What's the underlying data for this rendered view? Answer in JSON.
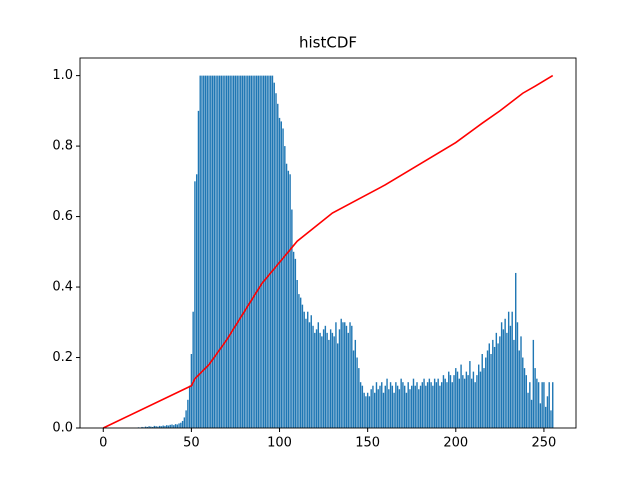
{
  "chart_data": [
    {
      "type": "bar",
      "title": "histCDF",
      "color": "#1f77b4",
      "xlim": [
        -13.2,
        268.2
      ],
      "ylim": [
        0,
        1.05
      ],
      "xticks": [
        0,
        50,
        100,
        150,
        200,
        250
      ],
      "yticks": [
        {
          "value": 0,
          "label": "0.0"
        },
        0.2,
        0.4,
        0.6,
        0.8,
        {
          "value": 1,
          "label": "1.0"
        }
      ],
      "x": [
        0,
        1,
        2,
        3,
        4,
        5,
        6,
        7,
        8,
        9,
        10,
        11,
        12,
        13,
        14,
        15,
        16,
        17,
        18,
        19,
        20,
        21,
        22,
        23,
        24,
        25,
        26,
        27,
        28,
        29,
        30,
        31,
        32,
        33,
        34,
        35,
        36,
        37,
        38,
        39,
        40,
        41,
        42,
        43,
        44,
        45,
        46,
        47,
        48,
        49,
        50,
        51,
        52,
        53,
        54,
        55,
        56,
        57,
        58,
        59,
        60,
        61,
        62,
        63,
        64,
        65,
        66,
        67,
        68,
        69,
        70,
        71,
        72,
        73,
        74,
        75,
        76,
        77,
        78,
        79,
        80,
        81,
        82,
        83,
        84,
        85,
        86,
        87,
        88,
        89,
        90,
        91,
        92,
        93,
        94,
        95,
        96,
        97,
        98,
        99,
        100,
        101,
        102,
        103,
        104,
        105,
        106,
        107,
        108,
        109,
        110,
        111,
        112,
        113,
        114,
        115,
        116,
        117,
        118,
        119,
        120,
        121,
        122,
        123,
        124,
        125,
        126,
        127,
        128,
        129,
        130,
        131,
        132,
        133,
        134,
        135,
        136,
        137,
        138,
        139,
        140,
        141,
        142,
        143,
        144,
        145,
        146,
        147,
        148,
        149,
        150,
        151,
        152,
        153,
        154,
        155,
        156,
        157,
        158,
        159,
        160,
        161,
        162,
        163,
        164,
        165,
        166,
        167,
        168,
        169,
        170,
        171,
        172,
        173,
        174,
        175,
        176,
        177,
        178,
        179,
        180,
        181,
        182,
        183,
        184,
        185,
        186,
        187,
        188,
        189,
        190,
        191,
        192,
        193,
        194,
        195,
        196,
        197,
        198,
        199,
        200,
        201,
        202,
        203,
        204,
        205,
        206,
        207,
        208,
        209,
        210,
        211,
        212,
        213,
        214,
        215,
        216,
        217,
        218,
        219,
        220,
        221,
        222,
        223,
        224,
        225,
        226,
        227,
        228,
        229,
        230,
        231,
        232,
        233,
        234,
        235,
        236,
        237,
        238,
        239,
        240,
        241,
        242,
        243,
        244,
        245,
        246,
        247,
        248,
        249,
        250,
        251,
        252,
        253,
        254,
        255
      ],
      "values": [
        0,
        0,
        0,
        0,
        0,
        0,
        0,
        0,
        0,
        0,
        0,
        0,
        0,
        0,
        0,
        0,
        0,
        0,
        0,
        0,
        0.002,
        0,
        0.003,
        0.002,
        0.004,
        0.003,
        0.005,
        0.004,
        0.003,
        0.006,
        0.005,
        0.004,
        0.006,
        0.005,
        0.007,
        0.006,
        0.008,
        0.007,
        0.009,
        0.01,
        0.008,
        0.011,
        0.01,
        0.013,
        0.015,
        0.02,
        0.03,
        0.05,
        0.08,
        0.12,
        0.21,
        0.33,
        0.7,
        0.72,
        0.9,
        1,
        1,
        1,
        1,
        1,
        1,
        1,
        1,
        1,
        1,
        1,
        1,
        1,
        1,
        1,
        1,
        1,
        1,
        1,
        1,
        1,
        1,
        1,
        1,
        1,
        1,
        1,
        1,
        1,
        1,
        1,
        1,
        1,
        1,
        1,
        1,
        1,
        1,
        1,
        1,
        1,
        1,
        0.98,
        0.95,
        0.92,
        0.88,
        0.87,
        0.85,
        0.8,
        0.75,
        0.73,
        0.72,
        0.62,
        0.5,
        0.48,
        0.42,
        0.38,
        0.37,
        0.35,
        0.33,
        0.31,
        0.33,
        0.3,
        0.32,
        0.29,
        0.27,
        0.28,
        0.3,
        0.27,
        0.26,
        0.28,
        0.29,
        0.27,
        0.25,
        0.28,
        0.27,
        0.26,
        0.3,
        0.24,
        0.28,
        0.31,
        0.3,
        0.3,
        0.29,
        0.27,
        0.3,
        0.29,
        0.22,
        0.25,
        0.2,
        0.17,
        0.13,
        0.12,
        0.1,
        0.09,
        0.1,
        0.09,
        0.11,
        0.12,
        0.1,
        0.13,
        0.11,
        0.12,
        0.13,
        0.1,
        0.12,
        0.14,
        0.11,
        0.13,
        0.12,
        0.1,
        0.13,
        0.12,
        0.11,
        0.14,
        0.13,
        0.12,
        0.1,
        0.13,
        0.11,
        0.12,
        0.14,
        0.12,
        0.13,
        0.11,
        0.12,
        0.13,
        0.14,
        0.12,
        0.13,
        0.14,
        0.13,
        0.12,
        0.14,
        0.13,
        0.14,
        0.12,
        0.13,
        0.15,
        0.14,
        0.13,
        0.16,
        0.15,
        0.13,
        0.15,
        0.17,
        0.16,
        0.14,
        0.18,
        0.15,
        0.14,
        0.16,
        0.15,
        0.19,
        0.14,
        0.16,
        0.13,
        0.15,
        0.18,
        0.16,
        0.21,
        0.17,
        0.2,
        0.22,
        0.24,
        0.21,
        0.25,
        0.23,
        0.27,
        0.24,
        0.26,
        0.3,
        0.28,
        0.31,
        0.27,
        0.33,
        0.29,
        0.33,
        0.25,
        0.44,
        0.3,
        0.22,
        0.26,
        0.2,
        0.17,
        0.15,
        0.1,
        0.13,
        0.08,
        0.25,
        0.17,
        0.14,
        0.13,
        0.07,
        0.13,
        0.13,
        0.06,
        0.09,
        0.13,
        0.05,
        0.13
      ]
    },
    {
      "type": "line",
      "color": "#ff0000",
      "x": [
        0,
        50,
        52,
        60,
        70,
        80,
        90,
        100,
        105,
        110,
        120,
        130,
        145,
        160,
        180,
        200,
        215,
        225,
        238,
        245,
        255
      ],
      "values": [
        0,
        0.12,
        0.14,
        0.18,
        0.25,
        0.33,
        0.41,
        0.47,
        0.5,
        0.53,
        0.57,
        0.61,
        0.65,
        0.69,
        0.75,
        0.81,
        0.865,
        0.9,
        0.95,
        0.97,
        1.0
      ]
    }
  ]
}
